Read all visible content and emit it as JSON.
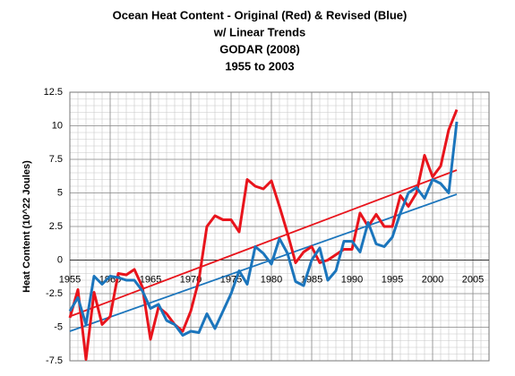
{
  "chart_data": {
    "type": "line",
    "title": [
      "Ocean Heat Content - Original (Red) & Revised (Blue)",
      "w/ Linear Trends",
      "GODAR (2008)",
      "1955 to 2003"
    ],
    "y_label": "Heat Content (10^22 Joules)",
    "x": [
      1955,
      1956,
      1957,
      1958,
      1959,
      1960,
      1961,
      1962,
      1963,
      1964,
      1965,
      1966,
      1967,
      1968,
      1969,
      1970,
      1971,
      1972,
      1973,
      1974,
      1975,
      1976,
      1977,
      1978,
      1979,
      1980,
      1981,
      1982,
      1983,
      1984,
      1985,
      1986,
      1987,
      1988,
      1989,
      1990,
      1991,
      1992,
      1993,
      1994,
      1995,
      1996,
      1997,
      1998,
      1999,
      2000,
      2001,
      2002,
      2003
    ],
    "series": [
      {
        "color": "#e8141c",
        "values": [
          -4.3,
          -2.2,
          -7.4,
          -2.4,
          -4.8,
          -4.2,
          -1.0,
          -1.1,
          -0.7,
          -2.0,
          -5.9,
          -3.5,
          -4.0,
          -4.8,
          -5.3,
          -3.8,
          -1.5,
          2.5,
          3.3,
          3.0,
          3.0,
          2.1,
          6.0,
          5.5,
          5.3,
          5.9,
          4.0,
          2.0,
          -0.2,
          0.6,
          1.0,
          -0.2,
          0.0,
          0.4,
          0.8,
          0.8,
          3.5,
          2.5,
          3.4,
          2.5,
          2.5,
          4.8,
          4.0,
          5.0,
          7.8,
          6.2,
          7.0,
          9.7,
          11.2
        ]
      },
      {
        "color": "#1b75bc",
        "values": [
          -3.8,
          -2.8,
          -4.8,
          -1.2,
          -1.8,
          -1.2,
          -1.3,
          -1.5,
          -1.5,
          -2.3,
          -3.6,
          -3.3,
          -4.5,
          -4.8,
          -5.6,
          -5.3,
          -5.4,
          -4.0,
          -5.1,
          -3.8,
          -2.5,
          -0.8,
          -1.8,
          1.0,
          0.5,
          -0.3,
          1.6,
          0.5,
          -1.6,
          -1.9,
          0.0,
          0.9,
          -1.5,
          -0.8,
          1.4,
          1.4,
          0.6,
          2.8,
          1.2,
          1.0,
          1.7,
          3.5,
          5.0,
          5.4,
          4.6,
          6.0,
          5.7,
          5.0,
          10.3
        ]
      }
    ],
    "trends": [
      {
        "color": "#e8141c",
        "x": [
          1955,
          2003
        ],
        "values": [
          -4.2,
          6.7
        ]
      },
      {
        "color": "#1b75bc",
        "x": [
          1955,
          2003
        ],
        "values": [
          -5.3,
          4.9
        ]
      }
    ],
    "xlim": [
      1955,
      2007
    ],
    "xticks": [
      1955,
      1960,
      1965,
      1970,
      1975,
      1980,
      1985,
      1990,
      1995,
      2000,
      2005
    ],
    "ylim": [
      -7.5,
      12.5
    ],
    "yticks": [
      -7.5,
      -5,
      -2.5,
      0,
      2.5,
      5,
      7.5,
      10,
      12.5
    ],
    "grid": true
  }
}
